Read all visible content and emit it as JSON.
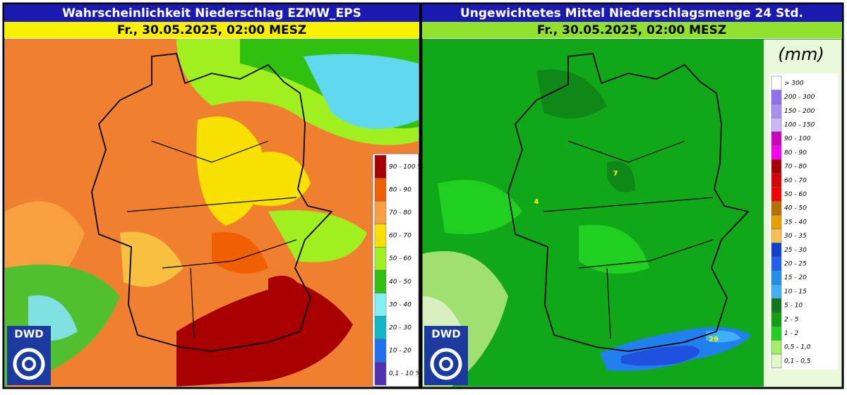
{
  "left_panel": {
    "title": "Wahrscheinlichkeit Niederschlag EZMW_EPS",
    "date": "Fr., 30.05.2025, 02:00 MESZ",
    "logo": "DWD",
    "legend": {
      "items": [
        {
          "label": "90 - 100 %",
          "color": "#a80000"
        },
        {
          "label": "80 - 90",
          "color": "#f06000"
        },
        {
          "label": "70 - 80",
          "color": "#f8a040"
        },
        {
          "label": "60 - 70",
          "color": "#f8e000"
        },
        {
          "label": "50 - 60",
          "color": "#a0f020"
        },
        {
          "label": "40 - 50",
          "color": "#30c010"
        },
        {
          "label": "30 - 40",
          "color": "#80f0f0"
        },
        {
          "label": "20 - 30",
          "color": "#10b8c8"
        },
        {
          "label": "10 - 20",
          "color": "#2070f0"
        },
        {
          "label": "0,1 - 10 %",
          "color": "#5030b0"
        }
      ]
    }
  },
  "right_panel": {
    "title": "Ungewichtetes Mittel Niederschlagsmenge 24 Std.",
    "date": "Fr., 30.05.2025, 02:00 MESZ",
    "logo": "DWD",
    "legend": {
      "unit": "(mm)",
      "items": [
        {
          "label": "> 300",
          "color": "#ffffff"
        },
        {
          "label": "200 - 300",
          "color": "#9070f0"
        },
        {
          "label": "150 - 200",
          "color": "#a890f0"
        },
        {
          "label": "100 - 150",
          "color": "#c8b8f8"
        },
        {
          "label": "90 - 100",
          "color": "#d000c0"
        },
        {
          "label": "80 - 90",
          "color": "#f800f0"
        },
        {
          "label": "70 - 80",
          "color": "#a80000"
        },
        {
          "label": "60 - 70",
          "color": "#d80000"
        },
        {
          "label": "50 - 60",
          "color": "#f80000"
        },
        {
          "label": "40 - 50",
          "color": "#b87000"
        },
        {
          "label": "35 - 40",
          "color": "#e8a000"
        },
        {
          "label": "30 - 35",
          "color": "#f8c050"
        },
        {
          "label": "25 - 30",
          "color": "#1040d0"
        },
        {
          "label": "20 - 25",
          "color": "#2060f0"
        },
        {
          "label": "15 - 20",
          "color": "#2090f0"
        },
        {
          "label": "10 - 15",
          "color": "#40b0f8"
        },
        {
          "label": "5 - 10",
          "color": "#107818"
        },
        {
          "label": "2 - 5",
          "color": "#10a010"
        },
        {
          "label": "1 - 2",
          "color": "#20d020"
        },
        {
          "label": "0,5 - 1,0",
          "color": "#a0f060"
        },
        {
          "label": "0,1 - 0,5",
          "color": "#e0f8c8"
        }
      ]
    },
    "map_labels": [
      "4",
      "7",
      "29"
    ]
  }
}
